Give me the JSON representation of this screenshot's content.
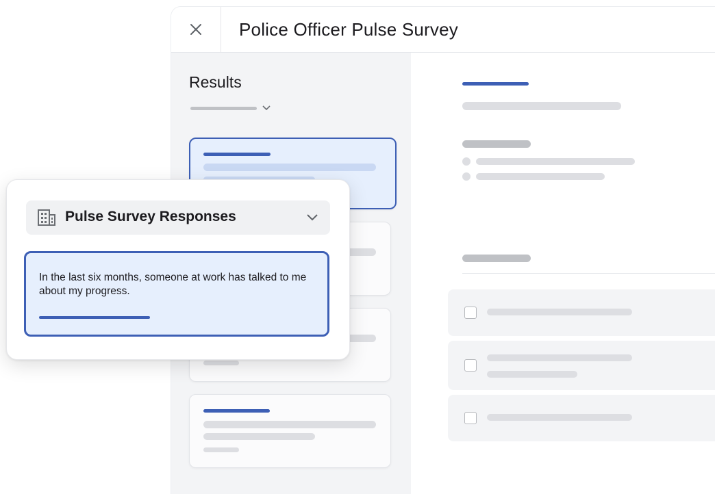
{
  "window": {
    "title": "Police Officer Pulse Survey"
  },
  "sidebar": {
    "title": "Results"
  },
  "panel": {
    "dropdown_label": "Pulse Survey Responses",
    "question_text": "In the last six months, someone at work has talked to me about my progress."
  },
  "icons": {
    "close": "close-icon",
    "chevron": "chevron-down-icon",
    "building": "building-icon"
  },
  "colors": {
    "accent": "#3d5fb5",
    "selected_bg": "#e6effd",
    "sidebar_bg": "#f3f4f6",
    "placeholder": "#dddee2"
  }
}
